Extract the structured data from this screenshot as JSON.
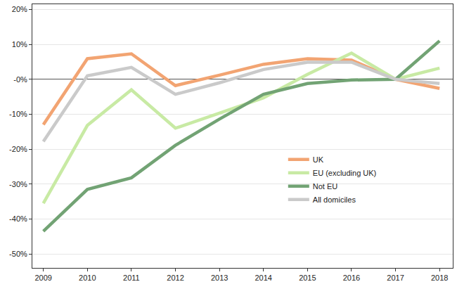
{
  "chart_data": {
    "type": "line",
    "x": [
      2009,
      2010,
      2011,
      2012,
      2013,
      2014,
      2015,
      2016,
      2017,
      2018
    ],
    "series": [
      {
        "name": "UK",
        "color": "#f2a472",
        "values": [
          -13,
          5.9,
          7.3,
          -1.8,
          1.2,
          4.3,
          5.9,
          5.5,
          0,
          -2.6
        ]
      },
      {
        "name": "EU (excluding UK)",
        "color": "#c8eaa4",
        "values": [
          -35.5,
          -13.2,
          -3,
          -14,
          -9.7,
          -5.3,
          1.4,
          7.5,
          0,
          3.2
        ]
      },
      {
        "name": "Not EU",
        "color": "#72a374",
        "values": [
          -43.5,
          -31.5,
          -28.2,
          -18.9,
          -11.4,
          -4.3,
          -1.2,
          -0.2,
          0,
          11
        ]
      },
      {
        "name": "All domiciles",
        "color": "#cacaca",
        "values": [
          -17.8,
          1,
          3.4,
          -4.3,
          -1,
          2.8,
          4.9,
          4.9,
          0,
          -1.2
        ]
      }
    ],
    "xlim": [
      2008.75,
      2018.3
    ],
    "xticks": [
      2009,
      2010,
      2011,
      2012,
      2013,
      2014,
      2015,
      2016,
      2017,
      2018
    ],
    "ylim": [
      -54,
      21.5
    ],
    "yticks": [
      {
        "value": -50,
        "label": "-50%"
      },
      {
        "value": -40,
        "label": "-40%"
      },
      {
        "value": -30,
        "label": "-30%"
      },
      {
        "value": -20,
        "label": "-20%"
      },
      {
        "value": -10,
        "label": "-10%"
      },
      {
        "value": 0,
        "label": "-0%"
      },
      {
        "value": 10,
        "label": "10%"
      },
      {
        "value": 20,
        "label": "20%"
      }
    ],
    "grid": true,
    "legend": "right"
  }
}
